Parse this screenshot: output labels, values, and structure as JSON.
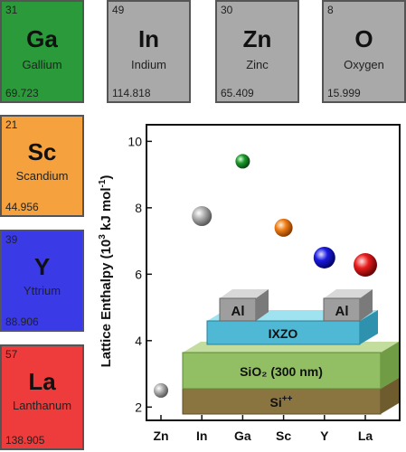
{
  "elements_top": [
    {
      "number": "31",
      "symbol": "Ga",
      "name": "Gallium",
      "mass": "69.723",
      "color": "#2a9a3a"
    },
    {
      "number": "49",
      "symbol": "In",
      "name": "Indium",
      "mass": "114.818",
      "color": "#a9a9a9"
    },
    {
      "number": "30",
      "symbol": "Zn",
      "name": "Zinc",
      "mass": "65.409",
      "color": "#a9a9a9"
    },
    {
      "number": "8",
      "symbol": "O",
      "name": "Oxygen",
      "mass": "15.999",
      "color": "#a9a9a9"
    }
  ],
  "elements_side": [
    {
      "number": "21",
      "symbol": "Sc",
      "name": "Scandium",
      "mass": "44.956",
      "color": "#f5a23e"
    },
    {
      "number": "39",
      "symbol": "Y",
      "name": "Yttrium",
      "mass": "88.906",
      "color": "#3a3ae6"
    },
    {
      "number": "57",
      "symbol": "La",
      "name": "Lanthanum",
      "mass": "138.905",
      "color": "#ee3b3b"
    }
  ],
  "chart_data": {
    "type": "scatter",
    "categories": [
      "Zn",
      "In",
      "Ga",
      "Sc",
      "Y",
      "La"
    ],
    "values": [
      2.5,
      7.75,
      9.4,
      7.4,
      6.5,
      6.28
    ],
    "point_colors": [
      "#888888",
      "#888888",
      "#1c9a2c",
      "#f07d18",
      "#1a1ae0",
      "#e81c1c"
    ],
    "point_sizes": [
      8,
      11,
      8,
      10,
      12,
      13
    ],
    "ylabel_pre": "Lattice Enthalpy (10",
    "ylabel_sup": "3",
    "ylabel_mid": " kJ mol",
    "ylabel_sup2": "-1",
    "ylabel_post": ")",
    "ylim": [
      1.6,
      10.5
    ],
    "yticks": [
      "2",
      "4",
      "6",
      "8",
      "10"
    ]
  },
  "device": {
    "contact_left": "Al",
    "contact_right": "Al",
    "channel": "IXZO",
    "dielectric": "SiO₂ (300 nm)",
    "substrate_pre": "Si",
    "substrate_sup": "++"
  }
}
